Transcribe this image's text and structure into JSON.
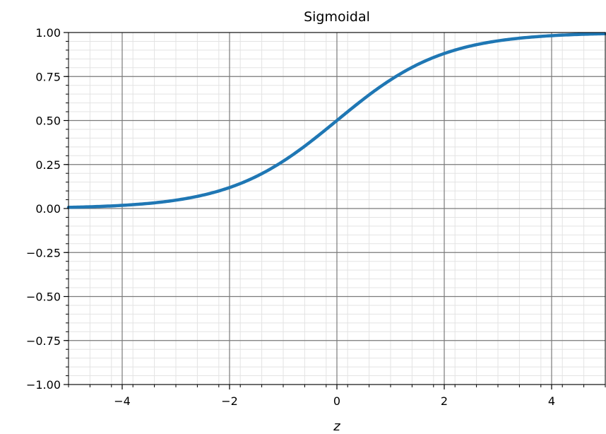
{
  "chart_data": {
    "type": "line",
    "title": "Sigmoidal",
    "xlabel": "z",
    "ylabel": "",
    "xlim": [
      -5,
      5
    ],
    "ylim": [
      -1,
      1
    ],
    "x_ticks": [
      -4,
      -2,
      0,
      2,
      4
    ],
    "x_tick_labels": [
      "−4",
      "−2",
      "0",
      "2",
      "4"
    ],
    "y_ticks": [
      -1.0,
      -0.75,
      -0.5,
      -0.25,
      0.0,
      0.25,
      0.5,
      0.75,
      1.0
    ],
    "y_tick_labels": [
      "−1.00",
      "−0.75",
      "−0.50",
      "−0.25",
      "0.00",
      "0.25",
      "0.50",
      "0.75",
      "1.00"
    ],
    "grid": true,
    "minor_grid": true,
    "series": [
      {
        "function": "sigmoid",
        "color": "#1f77b4",
        "x": [
          -5,
          -4,
          -3,
          -2,
          -1,
          0,
          1,
          2,
          3,
          4,
          5
        ],
        "values": [
          0.007,
          0.018,
          0.047,
          0.119,
          0.269,
          0.5,
          0.731,
          0.881,
          0.953,
          0.982,
          0.993
        ]
      }
    ]
  }
}
